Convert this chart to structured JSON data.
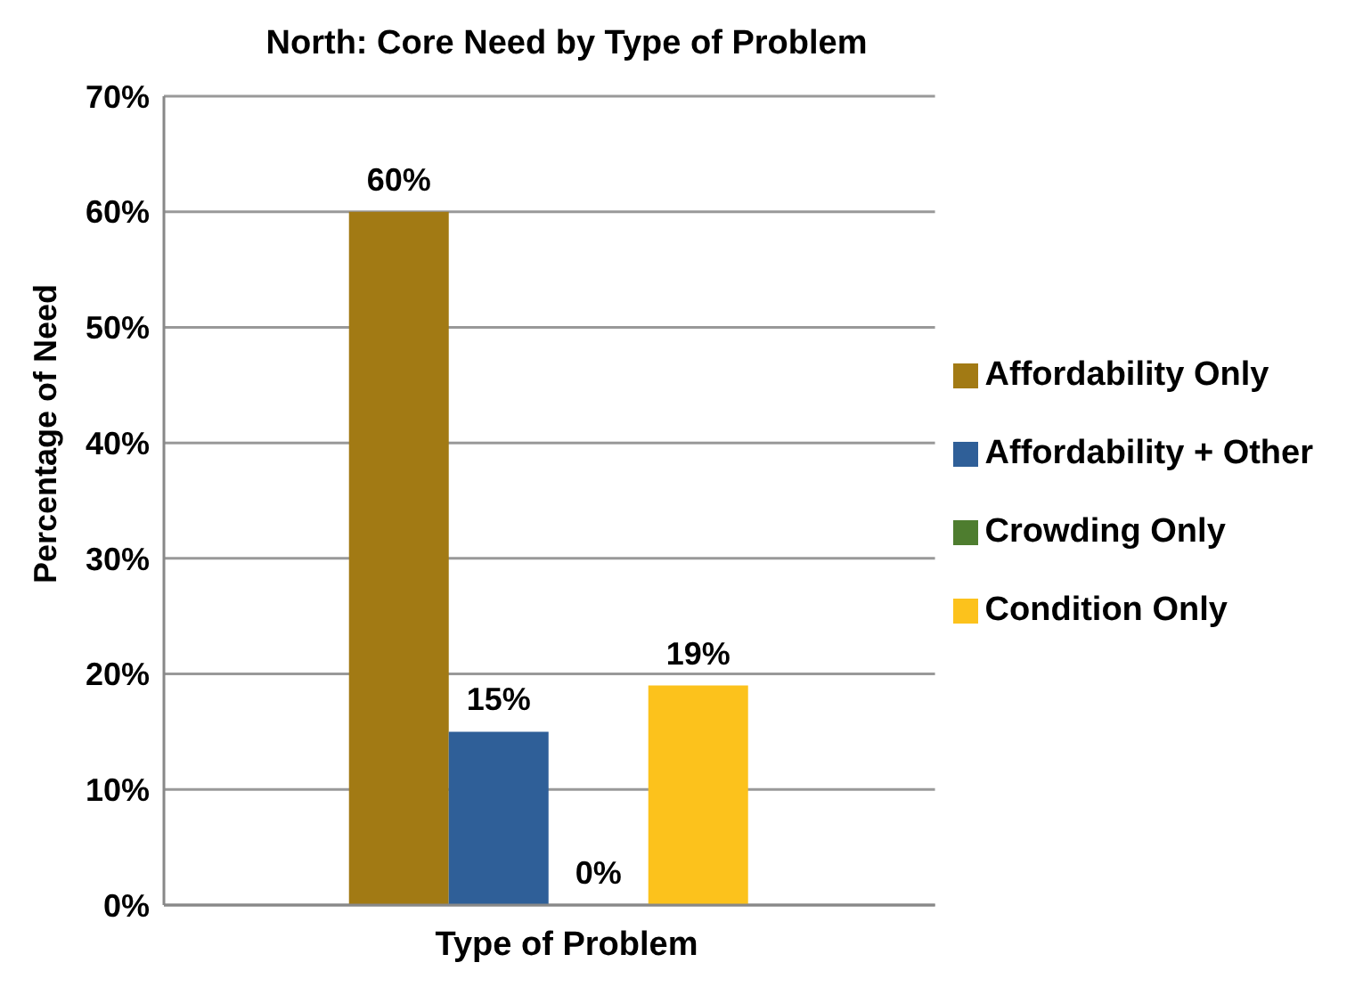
{
  "chart_data": {
    "type": "bar",
    "title": "North: Core Need by Type of Problem",
    "xlabel": "Type of Problem",
    "ylabel": "Percentage of Need",
    "categories": [
      null
    ],
    "series": [
      {
        "name": "Affordability Only",
        "color": "#a27a14",
        "values": [
          60
        ],
        "value_labels": [
          "60%"
        ]
      },
      {
        "name": "Affordability + Other",
        "color": "#2f5f98",
        "values": [
          15
        ],
        "value_labels": [
          "15%"
        ]
      },
      {
        "name": "Crowding Only",
        "color": "#4e7d2f",
        "values": [
          0
        ],
        "value_labels": [
          "0%"
        ]
      },
      {
        "name": "Condition Only",
        "color": "#fcc21c",
        "values": [
          19
        ],
        "value_labels": [
          "19%"
        ]
      }
    ],
    "ylim": [
      0,
      70
    ],
    "yticks": [
      {
        "value": 0,
        "label": "0%"
      },
      {
        "value": 10,
        "label": "10%"
      },
      {
        "value": 20,
        "label": "20%"
      },
      {
        "value": 30,
        "label": "30%"
      },
      {
        "value": 40,
        "label": "40%"
      },
      {
        "value": 50,
        "label": "50%"
      },
      {
        "value": 60,
        "label": "60%"
      },
      {
        "value": 70,
        "label": "70%"
      }
    ],
    "grid": "y",
    "legend": "right"
  }
}
